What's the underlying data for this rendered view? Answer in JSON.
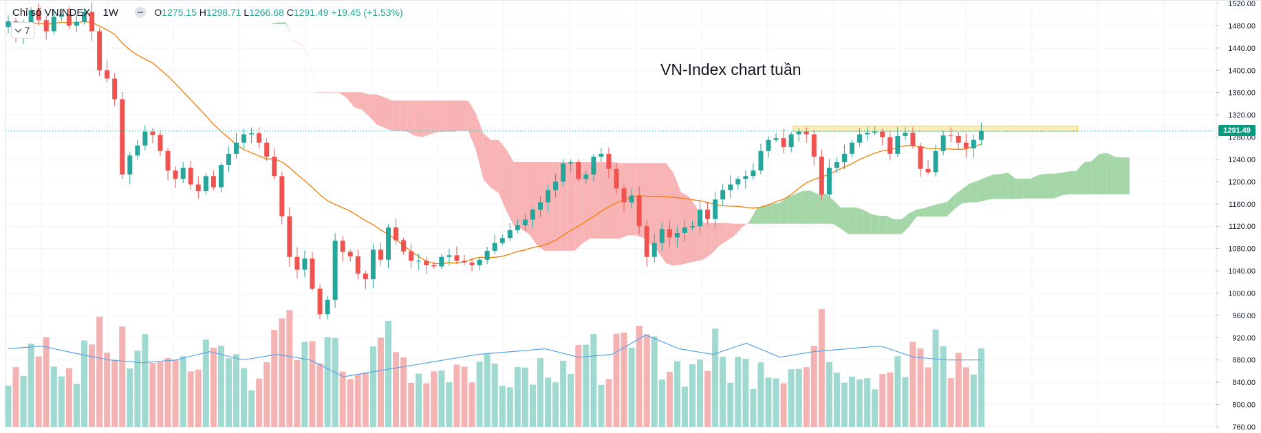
{
  "legend": {
    "symbol": "Chỉ số VNINDEX",
    "timeframe": "1W",
    "open_label": "O",
    "open": "1275.15",
    "high_label": "H",
    "high": "1298.71",
    "low_label": "L",
    "low": "1266.68",
    "close_label": "C",
    "close": "1291.49",
    "change": "+19.45 (+1.53%)",
    "collapsed_count": "7"
  },
  "annotation": "VN-Index chart tuần",
  "last_price_label": "1291.49",
  "colors": {
    "up": "#26a69a",
    "down": "#ef5350",
    "volume_up": "#9fd9cf",
    "volume_down": "#f4b3b3",
    "cloud_bull": "#a5d6a7",
    "cloud_bear": "#f8b3b5",
    "ma": "#f57c00",
    "volume_ma": "#5aa3e6",
    "resistance_zone": "#ffe082",
    "price_tag": "#089981"
  },
  "chart_data": {
    "type": "candlestick",
    "title": "Chỉ số VNINDEX",
    "interval": "1W",
    "ylim": [
      760,
      1520
    ],
    "yticks": [
      760,
      800,
      840,
      880,
      920,
      960,
      1000,
      1040,
      1080,
      1120,
      1160,
      1200,
      1240,
      1280,
      1320,
      1360,
      1400,
      1440,
      1480,
      1520
    ],
    "ytick_labels": [
      "760.00",
      "800.00",
      "840.00",
      "880.00",
      "920.00",
      "960.00",
      "1000.00",
      "1040.00",
      "1080.00",
      "1120.00",
      "1160.00",
      "1200.00",
      "1240.00",
      "1280.00",
      "1320.00",
      "1360.00",
      "1400.00",
      "1440.00",
      "1480.00",
      "1520.00"
    ],
    "last_close": 1291.49,
    "resistance_zone": [
      1290,
      1300
    ],
    "closes": [
      1488,
      1458,
      1480,
      1508,
      1490,
      1470,
      1496,
      1500,
      1480,
      1487,
      1505,
      1470,
      1400,
      1385,
      1348,
      1213,
      1247,
      1265,
      1290,
      1284,
      1255,
      1220,
      1205,
      1225,
      1195,
      1183,
      1210,
      1190,
      1230,
      1250,
      1270,
      1285,
      1287,
      1270,
      1245,
      1210,
      1138,
      1065,
      1042,
      1062,
      1008,
      962,
      988,
      1094,
      1074,
      1066,
      1035,
      1025,
      1078,
      1060,
      1118,
      1095,
      1075,
      1058,
      1058,
      1050,
      1048,
      1065,
      1068,
      1058,
      1055,
      1050,
      1060,
      1076,
      1090,
      1099,
      1113,
      1122,
      1132,
      1150,
      1163,
      1185,
      1200,
      1233,
      1235,
      1205,
      1213,
      1245,
      1250,
      1223,
      1188,
      1163,
      1175,
      1120,
      1065,
      1090,
      1115,
      1100,
      1108,
      1118,
      1120,
      1150,
      1133,
      1168,
      1185,
      1195,
      1205,
      1210,
      1220,
      1255,
      1275,
      1278,
      1262,
      1285,
      1290,
      1285,
      1245,
      1177,
      1225,
      1235,
      1250,
      1270,
      1285,
      1288,
      1290,
      1280,
      1250,
      1282,
      1288,
      1264,
      1223,
      1217,
      1255,
      1283,
      1282,
      1270,
      1260,
      1275,
      1291
    ],
    "volume_ma_levels": [
      900,
      905,
      892,
      880,
      875,
      880,
      895,
      880,
      890,
      880,
      850,
      860,
      870,
      880,
      890,
      895,
      900,
      885,
      890,
      925,
      900,
      890,
      910,
      885,
      895,
      900,
      905,
      885,
      880,
      880
    ]
  }
}
